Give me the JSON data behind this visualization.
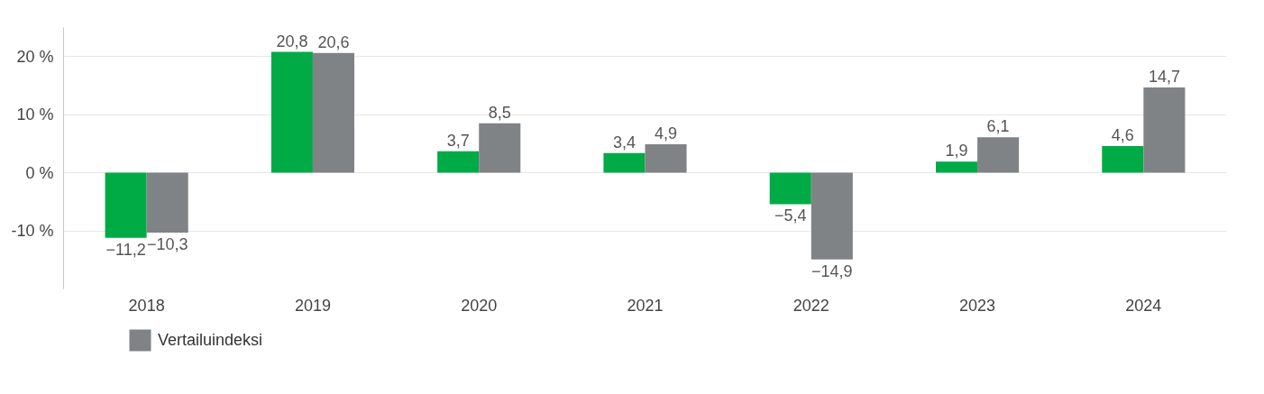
{
  "chart_data": {
    "type": "bar",
    "categories": [
      "2018",
      "2019",
      "2020",
      "2021",
      "2022",
      "2023",
      "2024"
    ],
    "series": [
      {
        "color": "#00aa45",
        "values": [
          -11.2,
          20.8,
          3.7,
          3.4,
          -5.4,
          1.9,
          4.6
        ],
        "value_labels": [
          "−11,2",
          "20,8",
          "3,7",
          "3,4",
          "−5,4",
          "1,9",
          "4,6"
        ]
      },
      {
        "name": "Vertailuindeksi",
        "color": "#7f8386",
        "values": [
          -10.3,
          20.6,
          8.5,
          4.9,
          -14.9,
          6.1,
          14.7
        ],
        "value_labels": [
          "−10,3",
          "20,6",
          "8,5",
          "4,9",
          "−14,9",
          "6,1",
          "14,7"
        ]
      }
    ],
    "ylim": [
      -20,
      25
    ],
    "yticks": [
      {
        "value": -10,
        "label": "-10 %"
      },
      {
        "value": 0,
        "label": "0 %"
      },
      {
        "value": 10,
        "label": "10 %"
      },
      {
        "value": 20,
        "label": "20 %"
      }
    ],
    "grid": "y",
    "legend": "bottom left"
  }
}
